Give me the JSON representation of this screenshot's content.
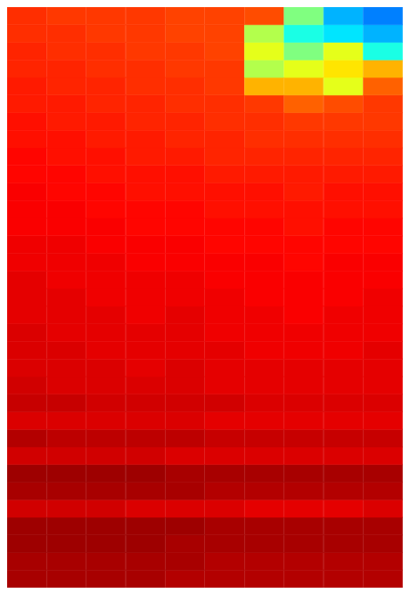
{
  "chart_data": {
    "type": "heatmap",
    "ylim": [
      0,
      33
    ],
    "zlim": [
      0,
      1
    ],
    "tick_labels": false,
    "values": [
      [
        0.83,
        0.82,
        0.82,
        0.82,
        0.81,
        0.81,
        0.8,
        0.5,
        0.3,
        0.25
      ],
      [
        0.83,
        0.83,
        0.82,
        0.82,
        0.81,
        0.81,
        0.55,
        0.4,
        0.35,
        0.3
      ],
      [
        0.84,
        0.83,
        0.83,
        0.82,
        0.82,
        0.81,
        0.6,
        0.5,
        0.6,
        0.4
      ],
      [
        0.84,
        0.84,
        0.83,
        0.83,
        0.82,
        0.82,
        0.55,
        0.6,
        0.65,
        0.7
      ],
      [
        0.85,
        0.84,
        0.84,
        0.83,
        0.83,
        0.82,
        0.7,
        0.7,
        0.6,
        0.78
      ],
      [
        0.85,
        0.85,
        0.84,
        0.84,
        0.83,
        0.83,
        0.82,
        0.78,
        0.8,
        0.82
      ],
      [
        0.86,
        0.85,
        0.85,
        0.84,
        0.84,
        0.83,
        0.83,
        0.82,
        0.82,
        0.82
      ],
      [
        0.86,
        0.86,
        0.85,
        0.85,
        0.84,
        0.84,
        0.83,
        0.83,
        0.83,
        0.83
      ],
      [
        0.87,
        0.86,
        0.86,
        0.85,
        0.85,
        0.84,
        0.84,
        0.84,
        0.84,
        0.84
      ],
      [
        0.87,
        0.87,
        0.86,
        0.86,
        0.86,
        0.85,
        0.85,
        0.85,
        0.85,
        0.85
      ],
      [
        0.88,
        0.87,
        0.87,
        0.86,
        0.86,
        0.86,
        0.86,
        0.85,
        0.86,
        0.86
      ],
      [
        0.88,
        0.88,
        0.87,
        0.87,
        0.87,
        0.86,
        0.86,
        0.86,
        0.86,
        0.86
      ],
      [
        0.88,
        0.88,
        0.88,
        0.87,
        0.87,
        0.87,
        0.87,
        0.86,
        0.87,
        0.87
      ],
      [
        0.89,
        0.89,
        0.88,
        0.88,
        0.88,
        0.87,
        0.87,
        0.87,
        0.87,
        0.87
      ],
      [
        0.89,
        0.89,
        0.89,
        0.88,
        0.88,
        0.88,
        0.88,
        0.87,
        0.88,
        0.88
      ],
      [
        0.9,
        0.89,
        0.89,
        0.89,
        0.89,
        0.88,
        0.88,
        0.88,
        0.88,
        0.88
      ],
      [
        0.9,
        0.9,
        0.89,
        0.89,
        0.89,
        0.89,
        0.88,
        0.88,
        0.88,
        0.89
      ],
      [
        0.9,
        0.9,
        0.9,
        0.89,
        0.9,
        0.89,
        0.89,
        0.88,
        0.89,
        0.89
      ],
      [
        0.91,
        0.9,
        0.9,
        0.9,
        0.9,
        0.89,
        0.89,
        0.89,
        0.89,
        0.89
      ],
      [
        0.91,
        0.91,
        0.9,
        0.9,
        0.9,
        0.9,
        0.89,
        0.89,
        0.89,
        0.9
      ],
      [
        0.91,
        0.91,
        0.91,
        0.9,
        0.91,
        0.9,
        0.9,
        0.9,
        0.9,
        0.9
      ],
      [
        0.92,
        0.91,
        0.91,
        0.91,
        0.91,
        0.9,
        0.9,
        0.9,
        0.9,
        0.9
      ],
      [
        0.93,
        0.93,
        0.92,
        0.92,
        0.92,
        0.92,
        0.91,
        0.91,
        0.91,
        0.91
      ],
      [
        0.91,
        0.91,
        0.91,
        0.91,
        0.91,
        0.9,
        0.9,
        0.9,
        0.9,
        0.9
      ],
      [
        0.95,
        0.94,
        0.94,
        0.94,
        0.94,
        0.93,
        0.93,
        0.93,
        0.93,
        0.93
      ],
      [
        0.92,
        0.92,
        0.92,
        0.92,
        0.91,
        0.91,
        0.91,
        0.91,
        0.91,
        0.91
      ],
      [
        0.97,
        0.97,
        0.97,
        0.97,
        0.96,
        0.96,
        0.96,
        0.96,
        0.96,
        0.96
      ],
      [
        0.96,
        0.96,
        0.96,
        0.96,
        0.96,
        0.95,
        0.95,
        0.95,
        0.95,
        0.95
      ],
      [
        0.92,
        0.92,
        0.92,
        0.91,
        0.91,
        0.91,
        0.9,
        0.9,
        0.9,
        0.91
      ],
      [
        0.97,
        0.97,
        0.97,
        0.97,
        0.97,
        0.96,
        0.96,
        0.96,
        0.96,
        0.96
      ],
      [
        0.97,
        0.97,
        0.97,
        0.97,
        0.96,
        0.96,
        0.96,
        0.96,
        0.96,
        0.96
      ],
      [
        0.96,
        0.96,
        0.96,
        0.96,
        0.96,
        0.95,
        0.95,
        0.95,
        0.95,
        0.95
      ],
      [
        0.96,
        0.96,
        0.96,
        0.96,
        0.95,
        0.95,
        0.95,
        0.95,
        0.95,
        0.95
      ]
    ]
  }
}
